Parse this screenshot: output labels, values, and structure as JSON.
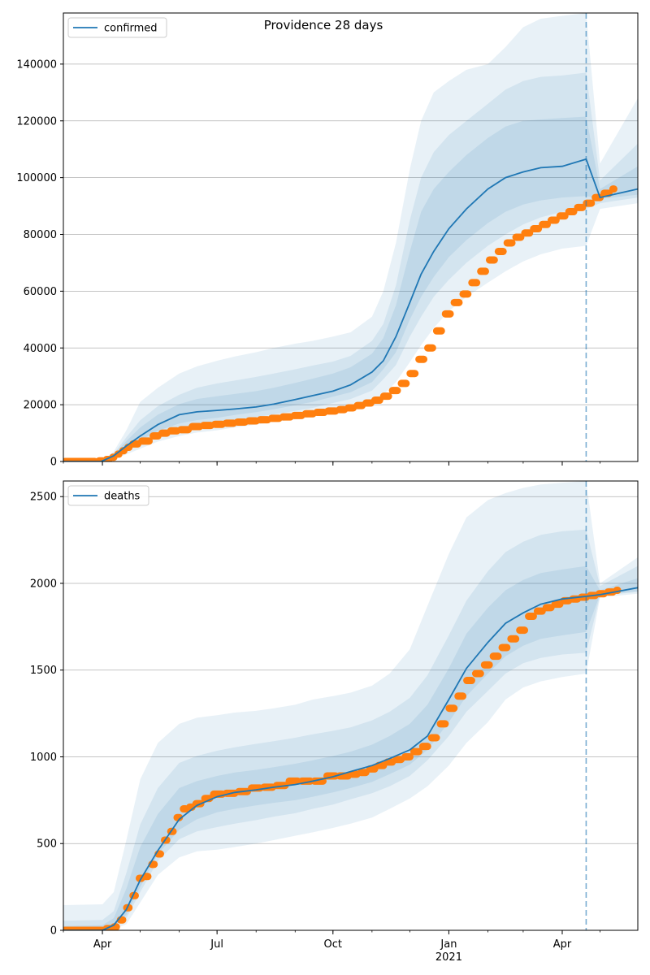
{
  "figure_title": "Providence 28 days",
  "colors": {
    "line": "#1f77b4",
    "observed": "#ff7f0e",
    "band": "#1f77b4",
    "grid": "#b0b0b0"
  },
  "x_axis": {
    "range": [
      "2020-03-01",
      "2021-05-31"
    ],
    "ticks": [
      {
        "date": "2020-04-01",
        "label": "Apr",
        "sub": ""
      },
      {
        "date": "2020-07-01",
        "label": "Jul",
        "sub": ""
      },
      {
        "date": "2020-10-01",
        "label": "Oct",
        "sub": ""
      },
      {
        "date": "2021-01-01",
        "label": "Jan",
        "sub": "2021"
      },
      {
        "date": "2021-04-01",
        "label": "Apr",
        "sub": ""
      }
    ],
    "forecast_start": "2021-04-20"
  },
  "chart_data": [
    {
      "type": "line",
      "legend": "confirmed",
      "legend_position": "top-left",
      "grid": true,
      "ylim": [
        0,
        158000
      ],
      "yticks": [
        0,
        20000,
        40000,
        60000,
        80000,
        100000,
        120000,
        140000
      ],
      "median": {
        "x": [
          "2020-03-01",
          "2020-03-31",
          "2020-04-10",
          "2020-04-20",
          "2020-05-01",
          "2020-05-15",
          "2020-06-01",
          "2020-06-15",
          "2020-07-01",
          "2020-07-15",
          "2020-08-01",
          "2020-08-15",
          "2020-09-01",
          "2020-09-15",
          "2020-10-01",
          "2020-10-15",
          "2020-11-01",
          "2020-11-10",
          "2020-11-20",
          "2020-12-01",
          "2020-12-10",
          "2020-12-20",
          "2021-01-01",
          "2021-01-15",
          "2021-02-01",
          "2021-02-15",
          "2021-03-01",
          "2021-03-15",
          "2021-04-01",
          "2021-04-20",
          "2021-05-01",
          "2021-05-31"
        ],
        "y": [
          0,
          0,
          2000,
          5500,
          9000,
          13000,
          16500,
          17500,
          18000,
          18500,
          19200,
          20200,
          21800,
          23200,
          24800,
          27000,
          31500,
          35500,
          44000,
          56000,
          66000,
          74000,
          82000,
          89000,
          96000,
          100000,
          102000,
          103500,
          104000,
          106500,
          93000,
          96000
        ]
      },
      "bands": [
        {
          "level": "outer",
          "upper": [
            0,
            0,
            3500,
            11000,
            21000,
            26000,
            31000,
            33500,
            35500,
            37000,
            38500,
            40000,
            41500,
            42500,
            44000,
            45500,
            51000,
            60000,
            77000,
            103000,
            120000,
            130000,
            134000,
            138000,
            140000,
            146000,
            153000,
            156000,
            157000,
            158000,
            105000,
            128000
          ],
          "lower": [
            0,
            0,
            800,
            2500,
            4500,
            7000,
            9000,
            10200,
            11000,
            12000,
            13000,
            14000,
            14800,
            15800,
            17500,
            18500,
            21000,
            23500,
            28000,
            35000,
            41000,
            47000,
            53000,
            58000,
            63000,
            67000,
            70500,
            73000,
            75000,
            76000,
            89000,
            91000
          ]
        },
        {
          "level": "middle",
          "upper": [
            0,
            0,
            2800,
            8500,
            14500,
            19500,
            23500,
            26000,
            27500,
            28500,
            29800,
            31000,
            32500,
            33800,
            35200,
            37200,
            42500,
            48500,
            62000,
            85000,
            100000,
            109000,
            115000,
            120000,
            126000,
            131000,
            134000,
            135500,
            136000,
            137000,
            99000,
            112000
          ],
          "lower": [
            0,
            0,
            1200,
            3500,
            6200,
            9200,
            11500,
            12600,
            13600,
            14600,
            15600,
            16600,
            17800,
            18900,
            20600,
            22000,
            25000,
            29000,
            34000,
            44000,
            51000,
            58000,
            64000,
            70000,
            76000,
            80000,
            83500,
            86000,
            88000,
            89000,
            91000,
            93000
          ]
        },
        {
          "level": "inner",
          "upper": [
            0,
            0,
            2400,
            7200,
            12000,
            16500,
            20200,
            22000,
            23000,
            23800,
            24800,
            26000,
            27700,
            29200,
            31000,
            33200,
            38000,
            43500,
            55000,
            74000,
            88000,
            96000,
            102000,
            108000,
            114000,
            118000,
            120000,
            120500,
            121000,
            121500,
            96000,
            104000
          ],
          "lower": [
            0,
            0,
            1500,
            4300,
            7400,
            10800,
            13400,
            14600,
            15400,
            16400,
            17400,
            18400,
            19800,
            21000,
            22800,
            24400,
            28000,
            32500,
            38500,
            50000,
            58000,
            65000,
            72000,
            78000,
            84000,
            88000,
            90500,
            92000,
            93000,
            93500,
            92500,
            94000
          ]
        }
      ],
      "observed_steps": {
        "dates": [
          "2020-03-01",
          "2020-03-28",
          "2020-04-03",
          "2020-04-08",
          "2020-04-12",
          "2020-04-16",
          "2020-04-20",
          "2020-04-24",
          "2020-05-01",
          "2020-05-10",
          "2020-05-17",
          "2020-05-24",
          "2020-06-01",
          "2020-06-10",
          "2020-06-19",
          "2020-06-28",
          "2020-07-07",
          "2020-07-16",
          "2020-07-25",
          "2020-08-03",
          "2020-08-12",
          "2020-08-21",
          "2020-08-30",
          "2020-09-08",
          "2020-09-17",
          "2020-09-26",
          "2020-10-05",
          "2020-10-12",
          "2020-10-19",
          "2020-10-26",
          "2020-11-02",
          "2020-11-09",
          "2020-11-16",
          "2020-11-23",
          "2020-11-30",
          "2020-12-07",
          "2020-12-14",
          "2020-12-21",
          "2020-12-28",
          "2021-01-04",
          "2021-01-11",
          "2021-01-18",
          "2021-01-25",
          "2021-02-01",
          "2021-02-08",
          "2021-02-15",
          "2021-02-22",
          "2021-03-01",
          "2021-03-08",
          "2021-03-15",
          "2021-03-22",
          "2021-03-29",
          "2021-04-05",
          "2021-04-12",
          "2021-04-19",
          "2021-04-26",
          "2021-05-03",
          "2021-05-10"
        ],
        "values": [
          0,
          200,
          700,
          1500,
          2600,
          3800,
          5000,
          6200,
          7200,
          9000,
          10000,
          10800,
          11200,
          12300,
          12700,
          13100,
          13500,
          13900,
          14300,
          14700,
          15200,
          15700,
          16200,
          16800,
          17300,
          17800,
          18300,
          18900,
          19700,
          20600,
          21600,
          23000,
          25000,
          27500,
          31000,
          36000,
          40000,
          46000,
          52000,
          56000,
          59000,
          63000,
          67000,
          71000,
          74000,
          77000,
          79000,
          80500,
          82000,
          83500,
          85000,
          86500,
          88000,
          89500,
          91000,
          93000,
          94500,
          96000
        ]
      }
    },
    {
      "type": "line",
      "legend": "deaths",
      "legend_position": "top-left",
      "grid": true,
      "ylim": [
        0,
        2590
      ],
      "yticks": [
        0,
        500,
        1000,
        1500,
        2000,
        2500
      ],
      "median": {
        "x": [
          "2020-03-01",
          "2020-04-01",
          "2020-04-10",
          "2020-04-20",
          "2020-05-01",
          "2020-05-15",
          "2020-06-01",
          "2020-06-15",
          "2020-07-01",
          "2020-07-15",
          "2020-08-01",
          "2020-08-15",
          "2020-09-01",
          "2020-09-15",
          "2020-10-01",
          "2020-10-15",
          "2020-11-01",
          "2020-11-15",
          "2020-12-01",
          "2020-12-15",
          "2021-01-01",
          "2021-01-15",
          "2021-02-01",
          "2021-02-15",
          "2021-03-01",
          "2021-03-15",
          "2021-04-01",
          "2021-04-20",
          "2021-05-01",
          "2021-05-31"
        ],
        "y": [
          0,
          0,
          30,
          120,
          290,
          460,
          640,
          720,
          770,
          795,
          810,
          825,
          840,
          860,
          885,
          915,
          950,
          990,
          1040,
          1120,
          1330,
          1510,
          1660,
          1770,
          1830,
          1880,
          1910,
          1925,
          1935,
          1975
        ]
      },
      "bands": [
        {
          "level": "outer",
          "upper": [
            145,
            150,
            220,
            520,
            870,
            1080,
            1190,
            1225,
            1240,
            1255,
            1265,
            1280,
            1300,
            1330,
            1350,
            1370,
            1410,
            1480,
            1620,
            1870,
            2170,
            2380,
            2480,
            2520,
            2550,
            2570,
            2580,
            2590,
            2000,
            2150
          ],
          "lower": [
            0,
            0,
            5,
            35,
            160,
            320,
            420,
            455,
            465,
            480,
            500,
            520,
            545,
            565,
            590,
            615,
            650,
            700,
            760,
            830,
            950,
            1080,
            1200,
            1330,
            1400,
            1435,
            1460,
            1480,
            1920,
            1940
          ]
        },
        {
          "level": "middle",
          "upper": [
            55,
            60,
            110,
            330,
            610,
            820,
            965,
            1005,
            1035,
            1055,
            1075,
            1090,
            1110,
            1130,
            1150,
            1170,
            1210,
            1260,
            1340,
            1470,
            1700,
            1900,
            2070,
            2180,
            2240,
            2280,
            2300,
            2310,
            1985,
            2100
          ],
          "lower": [
            0,
            0,
            15,
            70,
            220,
            400,
            525,
            570,
            595,
            615,
            635,
            655,
            675,
            700,
            725,
            755,
            790,
            830,
            890,
            980,
            1120,
            1260,
            1380,
            1480,
            1540,
            1570,
            1590,
            1600,
            1930,
            1950
          ]
        },
        {
          "level": "inner",
          "upper": [
            25,
            30,
            70,
            240,
            480,
            670,
            820,
            860,
            890,
            910,
            925,
            940,
            960,
            980,
            1005,
            1030,
            1070,
            1120,
            1190,
            1300,
            1510,
            1710,
            1860,
            1960,
            2020,
            2060,
            2080,
            2100,
            1960,
            2030
          ],
          "lower": [
            0,
            0,
            20,
            90,
            250,
            440,
            580,
            640,
            680,
            700,
            720,
            735,
            750,
            770,
            795,
            820,
            855,
            900,
            955,
            1040,
            1200,
            1350,
            1480,
            1580,
            1640,
            1680,
            1700,
            1720,
            1935,
            1955
          ]
        }
      ],
      "observed_steps": {
        "dates": [
          "2020-03-01",
          "2020-04-03",
          "2020-04-09",
          "2020-04-14",
          "2020-04-19",
          "2020-04-24",
          "2020-04-29",
          "2020-05-04",
          "2020-05-09",
          "2020-05-14",
          "2020-05-19",
          "2020-05-24",
          "2020-05-29",
          "2020-06-03",
          "2020-06-08",
          "2020-06-13",
          "2020-06-20",
          "2020-06-27",
          "2020-07-07",
          "2020-07-17",
          "2020-07-27",
          "2020-08-06",
          "2020-08-16",
          "2020-08-26",
          "2020-09-05",
          "2020-09-15",
          "2020-09-25",
          "2020-10-05",
          "2020-10-15",
          "2020-10-22",
          "2020-10-29",
          "2020-11-05",
          "2020-11-12",
          "2020-11-19",
          "2020-11-26",
          "2020-12-03",
          "2020-12-10",
          "2020-12-17",
          "2020-12-24",
          "2020-12-31",
          "2021-01-07",
          "2021-01-14",
          "2021-01-21",
          "2021-01-28",
          "2021-02-04",
          "2021-02-11",
          "2021-02-18",
          "2021-02-25",
          "2021-03-04",
          "2021-03-11",
          "2021-03-18",
          "2021-03-25",
          "2021-04-01",
          "2021-04-08",
          "2021-04-15",
          "2021-04-22",
          "2021-04-29",
          "2021-05-06",
          "2021-05-13"
        ],
        "values": [
          0,
          10,
          20,
          60,
          130,
          200,
          300,
          310,
          380,
          440,
          520,
          570,
          650,
          700,
          710,
          730,
          760,
          785,
          790,
          800,
          820,
          825,
          835,
          860,
          860,
          860,
          890,
          890,
          900,
          910,
          930,
          950,
          970,
          985,
          1000,
          1030,
          1060,
          1110,
          1190,
          1280,
          1350,
          1440,
          1480,
          1530,
          1580,
          1630,
          1680,
          1730,
          1810,
          1840,
          1860,
          1880,
          1900,
          1910,
          1920,
          1930,
          1940,
          1950,
          1960
        ]
      }
    }
  ]
}
